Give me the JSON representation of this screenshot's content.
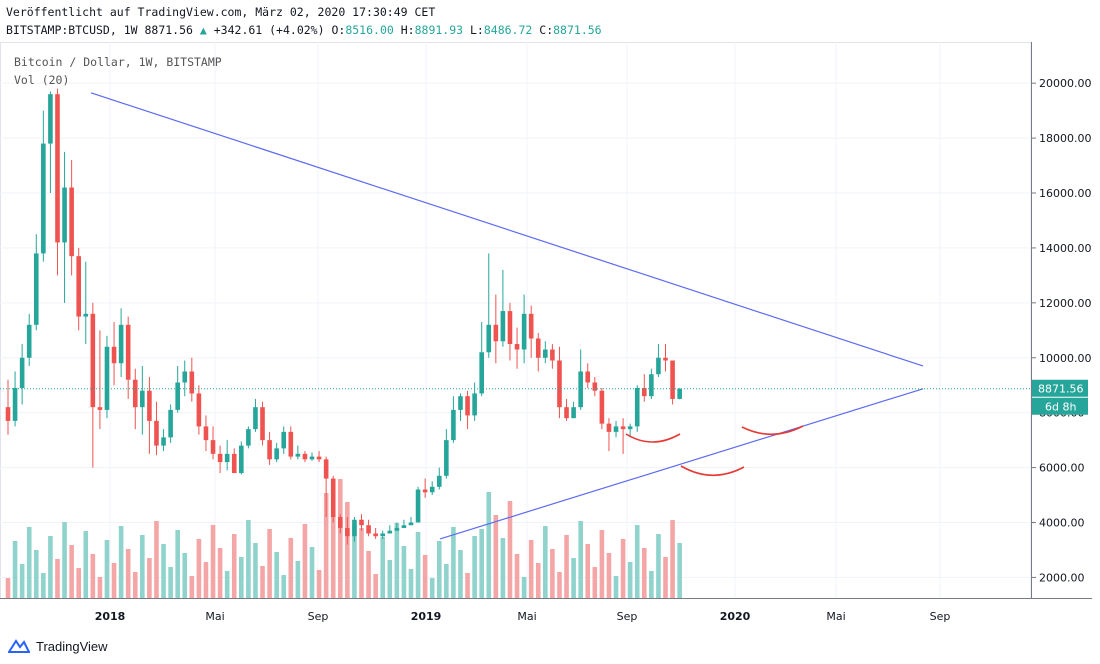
{
  "header": {
    "line1": "Veröffentlicht auf TradingView.com, März 02, 2020 17:30:49 CET",
    "symbol": "BITSTAMP:BTCUSD, 1W 8871.56",
    "arrow": "▲",
    "change": "+342.61 (+4.02%)",
    "o_label": "O:",
    "o_value": "8516.00",
    "h_label": "H:",
    "h_value": "8891.93",
    "l_label": "L:",
    "l_value": "8486.72",
    "c_label": "C:",
    "c_value": "8871.56"
  },
  "overlay": {
    "title": "Bitcoin / Dollar, 1W, BITSTAMP",
    "volume": "Vol (20)"
  },
  "footer": {
    "brand": "TradingView"
  },
  "colors": {
    "up": "#26a69a",
    "down": "#ef5350",
    "vol_up": "#8fd3cc",
    "vol_down": "#f4a6a6",
    "trendline": "#5c6bf0",
    "annotation": "#e53935",
    "price_label_bg": "#26a69a"
  },
  "chart_data": {
    "type": "candlestick",
    "title": "Bitcoin / Dollar, 1W, BITSTAMP",
    "y_ticks": [
      "2000.00",
      "4000.00",
      "6000.00",
      "8000.00",
      "10000.00",
      "12000.00",
      "14000.00",
      "16000.00",
      "18000.00",
      "20000.00"
    ],
    "ylim": [
      1250,
      21500
    ],
    "x_ticks": [
      "2018",
      "Mai",
      "Sep",
      "2019",
      "Mai",
      "Sep",
      "2020",
      "Mai",
      "Sep"
    ],
    "last_price": "8871.56",
    "countdown": "6d 8h",
    "candles_approx": [
      [
        8200,
        7700,
        9200,
        7200
      ],
      [
        7700,
        8900,
        9500,
        7500
      ],
      [
        8900,
        10000,
        10500,
        8300
      ],
      [
        10000,
        11200,
        11600,
        9700
      ],
      [
        11200,
        13800,
        14500,
        11000
      ],
      [
        13800,
        17800,
        19000,
        13500
      ],
      [
        17800,
        19600,
        19700,
        16000
      ],
      [
        19600,
        14200,
        19800,
        13000
      ],
      [
        14200,
        16200,
        17500,
        12000
      ],
      [
        16200,
        13700,
        17200,
        13000
      ],
      [
        13700,
        11500,
        14000,
        11000
      ],
      [
        11500,
        11600,
        13500,
        10500
      ],
      [
        11600,
        8200,
        12000,
        6000
      ],
      [
        8200,
        8100,
        11000,
        7400
      ],
      [
        8100,
        10400,
        10800,
        7800
      ],
      [
        10400,
        9800,
        11300,
        9000
      ],
      [
        9800,
        11200,
        11800,
        9300
      ],
      [
        11200,
        9200,
        11500,
        8500
      ],
      [
        9200,
        8200,
        9600,
        7400
      ],
      [
        8200,
        8800,
        9700,
        7200
      ],
      [
        8800,
        7700,
        9300,
        6500
      ],
      [
        7700,
        6800,
        8400,
        6450
      ],
      [
        6800,
        7100,
        7400,
        6600
      ],
      [
        7100,
        8100,
        8300,
        6900
      ],
      [
        8100,
        9100,
        9700,
        8000
      ],
      [
        9100,
        9500,
        9900,
        8600
      ],
      [
        9500,
        8700,
        10000,
        8400
      ],
      [
        8700,
        7500,
        9000,
        7200
      ],
      [
        7500,
        7000,
        7900,
        6600
      ],
      [
        7000,
        6500,
        7500,
        6300
      ],
      [
        6500,
        6200,
        6800,
        5800
      ],
      [
        6200,
        6500,
        7000,
        5900
      ],
      [
        6500,
        5800,
        6700,
        5800
      ],
      [
        5800,
        6800,
        6950,
        5750
      ],
      [
        6800,
        7400,
        7500,
        6700
      ],
      [
        7400,
        8200,
        8500,
        7300
      ],
      [
        8200,
        7000,
        8400,
        6800
      ],
      [
        7000,
        6300,
        7300,
        6100
      ],
      [
        6300,
        6700,
        6900,
        6200
      ],
      [
        6700,
        7300,
        7500,
        6500
      ],
      [
        7300,
        6400,
        7500,
        6300
      ],
      [
        6400,
        6500,
        6800,
        6300
      ],
      [
        6500,
        6300,
        6600,
        6200
      ],
      [
        6300,
        6400,
        6550,
        6250
      ],
      [
        6400,
        6300,
        6600,
        6200
      ],
      [
        6300,
        5600,
        6400,
        4200
      ],
      [
        5600,
        4200,
        5700,
        4000
      ],
      [
        4200,
        3800,
        4300,
        3600
      ],
      [
        3800,
        3500,
        4200,
        3200
      ],
      [
        3500,
        4100,
        4200,
        3300
      ],
      [
        4100,
        3900,
        4300,
        3700
      ],
      [
        3900,
        3600,
        4100,
        3500
      ],
      [
        3600,
        3500,
        3800,
        3400
      ],
      [
        3500,
        3600,
        3700,
        3400
      ],
      [
        3600,
        3700,
        3900,
        3600
      ],
      [
        3700,
        3800,
        4000,
        3700
      ],
      [
        3800,
        3900,
        4100,
        3800
      ],
      [
        3900,
        4000,
        4200,
        3900
      ],
      [
        4000,
        5200,
        5300,
        4000
      ],
      [
        5200,
        5100,
        5600,
        4900
      ],
      [
        5100,
        5300,
        5500,
        5000
      ],
      [
        5300,
        5700,
        6000,
        5200
      ],
      [
        5700,
        7000,
        7400,
        5600
      ],
      [
        7000,
        8100,
        8600,
        6900
      ],
      [
        8100,
        8600,
        8700,
        7700
      ],
      [
        8600,
        7900,
        8800,
        7400
      ],
      [
        7900,
        8700,
        9100,
        7700
      ],
      [
        8700,
        10200,
        11300,
        8600
      ],
      [
        10200,
        11200,
        13800,
        10000
      ],
      [
        11200,
        10600,
        12300,
        9800
      ],
      [
        10600,
        11700,
        13200,
        10400
      ],
      [
        11700,
        10500,
        12000,
        9900
      ],
      [
        10500,
        10300,
        11100,
        9600
      ],
      [
        10300,
        11600,
        12300,
        9800
      ],
      [
        11600,
        10700,
        11900,
        10000
      ],
      [
        10700,
        10000,
        10900,
        9500
      ],
      [
        10000,
        10300,
        10600,
        9800
      ],
      [
        10300,
        9900,
        10500,
        9600
      ],
      [
        9900,
        8200,
        10400,
        7800
      ],
      [
        8200,
        7800,
        8500,
        7700
      ],
      [
        7800,
        8200,
        8400,
        7800
      ],
      [
        8200,
        9500,
        10300,
        8100
      ],
      [
        9500,
        9100,
        9800,
        8900
      ],
      [
        9100,
        8800,
        9300,
        8600
      ],
      [
        8800,
        7600,
        8900,
        7400
      ],
      [
        7600,
        7300,
        7800,
        6600
      ],
      [
        7300,
        7500,
        7700,
        7100
      ],
      [
        7500,
        7400,
        7800,
        6500
      ],
      [
        7400,
        7500,
        7600,
        7100
      ],
      [
        7500,
        8900,
        9000,
        7300
      ],
      [
        8900,
        8600,
        9400,
        8400
      ],
      [
        8600,
        9400,
        9600,
        8500
      ],
      [
        9400,
        10000,
        10500,
        9300
      ],
      [
        10000,
        9900,
        10500,
        9500
      ],
      [
        9900,
        8500,
        9900,
        8300
      ],
      [
        8500,
        8871,
        8892,
        8487
      ]
    ]
  }
}
